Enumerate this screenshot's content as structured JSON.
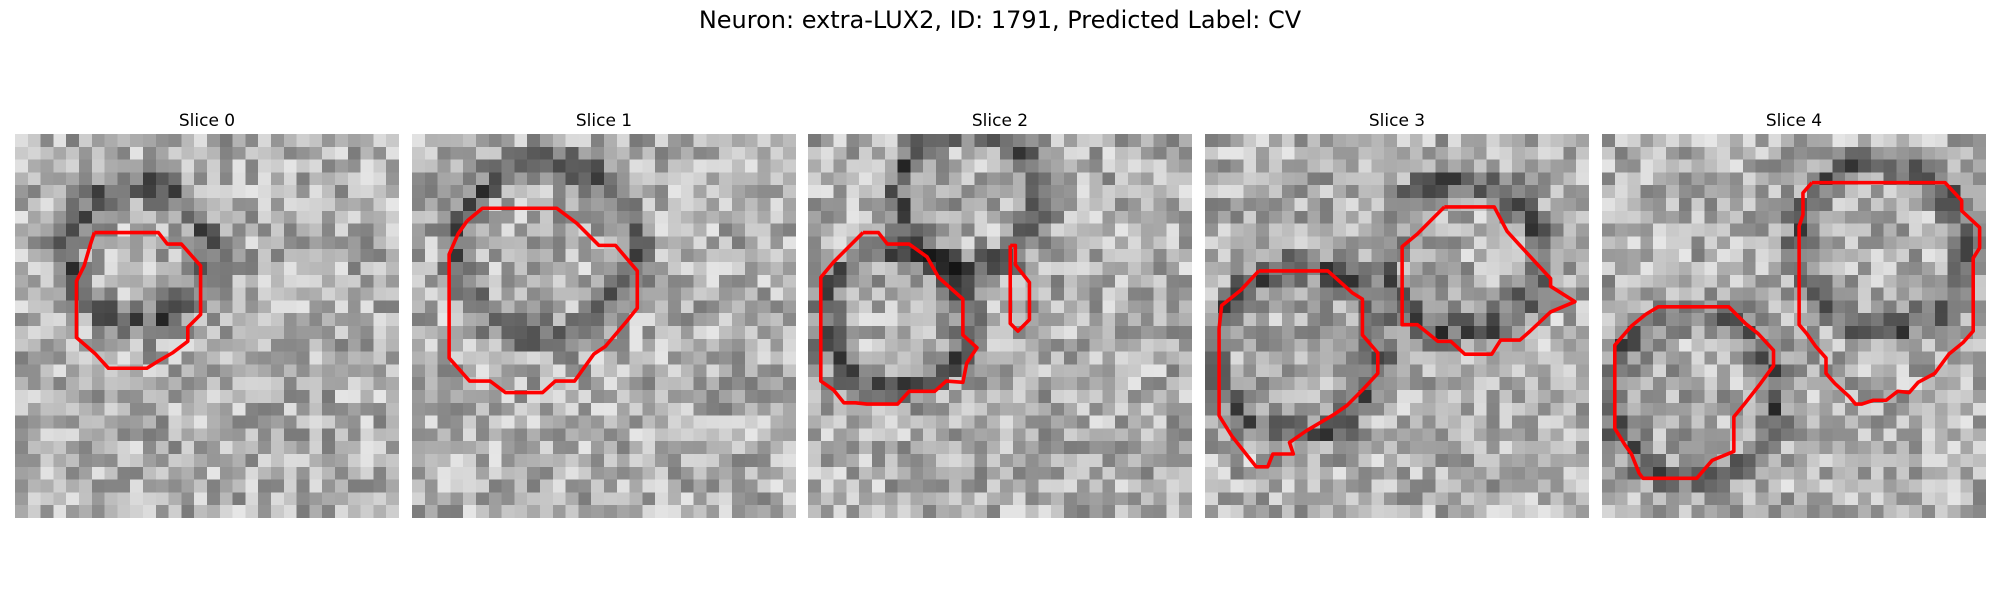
{
  "figure": {
    "title": "Neuron: extra-LUX2, ID: 1791, Predicted Label: CV",
    "contour_color": "#ff0000"
  },
  "panels": [
    {
      "title": "Slice 0"
    },
    {
      "title": "Slice 1"
    },
    {
      "title": "Slice 2"
    },
    {
      "title": "Slice 3"
    },
    {
      "title": "Slice 4"
    }
  ]
}
